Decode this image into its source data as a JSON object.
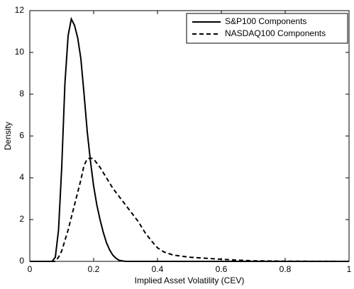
{
  "chart_data": {
    "type": "line",
    "xlabel": "Implied Asset Volatility (CEV)",
    "ylabel": "Density",
    "xlim": [
      0,
      1
    ],
    "xticks": [
      0,
      0.2,
      0.4,
      0.6,
      0.8,
      1
    ],
    "ylim": [
      0,
      12
    ],
    "yticks": [
      0,
      2,
      4,
      6,
      8,
      10,
      12
    ],
    "legend": "upper-right",
    "series": [
      {
        "name": "S&P100 Components",
        "color": "#000000",
        "line_style": "solid",
        "x": [
          0,
          0.07,
          0.08,
          0.09,
          0.1,
          0.11,
          0.12,
          0.13,
          0.14,
          0.15,
          0.16,
          0.17,
          0.18,
          0.19,
          0.2,
          0.21,
          0.22,
          0.23,
          0.24,
          0.25,
          0.26,
          0.27,
          0.28,
          0.3,
          1
        ],
        "values": [
          0,
          0,
          0.2,
          1.5,
          4.5,
          8.5,
          10.8,
          11.6,
          11.3,
          10.7,
          9.7,
          8.0,
          6.2,
          4.8,
          3.6,
          2.7,
          2.0,
          1.4,
          0.9,
          0.55,
          0.3,
          0.15,
          0.05,
          0,
          0
        ]
      },
      {
        "name": "NASDAQ100 Components",
        "color": "#000000",
        "line_style": "dashed",
        "x": [
          0,
          0.08,
          0.09,
          0.1,
          0.12,
          0.14,
          0.16,
          0.17,
          0.18,
          0.19,
          0.2,
          0.22,
          0.24,
          0.26,
          0.28,
          0.3,
          0.32,
          0.34,
          0.36,
          0.38,
          0.4,
          0.42,
          0.45,
          0.5,
          0.55,
          0.6,
          0.65,
          0.7,
          0.8,
          1
        ],
        "values": [
          0,
          0,
          0.2,
          0.5,
          1.5,
          2.7,
          3.9,
          4.6,
          4.9,
          4.95,
          4.9,
          4.5,
          4.0,
          3.5,
          3.1,
          2.7,
          2.3,
          1.9,
          1.4,
          1.0,
          0.65,
          0.45,
          0.3,
          0.2,
          0.15,
          0.1,
          0.06,
          0.03,
          0.01,
          0
        ]
      }
    ]
  }
}
